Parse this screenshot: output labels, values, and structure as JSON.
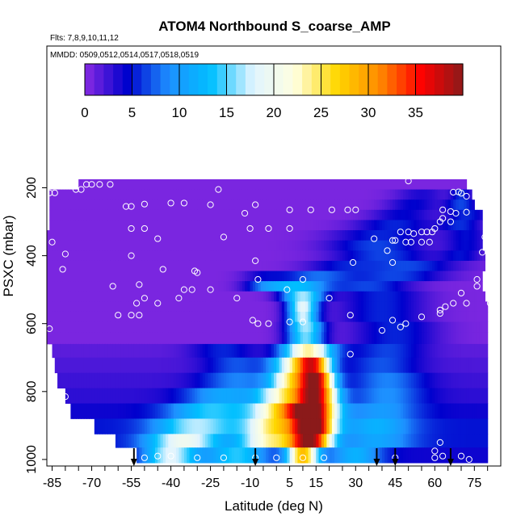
{
  "title": "ATOM4 Northbound S_coarse_AMP",
  "flights_note": "Flts: 7,8,9,10,11,12",
  "dates_note": "MMDD: 0509,0512,0514,0517,0518,0519",
  "chart_data": {
    "type": "heatmap",
    "xlabel": "Latitude (deg N)",
    "ylabel": "PSXC (mbar)",
    "xlim": [
      -87,
      85
    ],
    "ylim": [
      1010,
      100
    ],
    "y_reversed": true,
    "x_ticks": [
      -85,
      -70,
      -55,
      -40,
      -25,
      -10,
      5,
      15,
      30,
      45,
      60,
      75
    ],
    "y_ticks": [
      200,
      400,
      600,
      800,
      1000
    ],
    "colorbar": {
      "range": [
        0,
        40
      ],
      "ticks": [
        0,
        5,
        10,
        15,
        20,
        25,
        30,
        35
      ],
      "placement": "top",
      "palette": [
        "#8a2be2",
        "#0000cd",
        "#1e90ff",
        "#00bfff",
        "#e0f4ff",
        "#ffffe0",
        "#ffd700",
        "#ff8c00",
        "#ff0000",
        "#8b1a1a"
      ]
    },
    "layers": [
      {
        "p_top": 175,
        "p_bot": 205,
        "lat_min": -75,
        "lat_max": 72,
        "peaks": [],
        "base": 0.5
      },
      {
        "p_top": 205,
        "p_bot": 235,
        "lat_min": -86,
        "lat_max": 74,
        "peaks": [
          {
            "lat": 55,
            "w": 10,
            "v": 3
          },
          {
            "lat": 70,
            "w": 4,
            "v": 5
          }
        ],
        "base": 0.5
      },
      {
        "p_top": 235,
        "p_bot": 265,
        "lat_min": -86,
        "lat_max": 75,
        "peaks": [
          {
            "lat": 52,
            "w": 10,
            "v": 4
          },
          {
            "lat": 70,
            "w": 6,
            "v": 6
          }
        ],
        "base": 0.5
      },
      {
        "p_top": 265,
        "p_bot": 295,
        "lat_min": -86,
        "lat_max": 78,
        "peaks": [
          {
            "lat": 48,
            "w": 12,
            "v": 4
          },
          {
            "lat": 72,
            "w": 8,
            "v": 5
          }
        ],
        "base": 0.5
      },
      {
        "p_top": 295,
        "p_bot": 325,
        "lat_min": -86,
        "lat_max": 78,
        "peaks": [
          {
            "lat": 45,
            "w": 15,
            "v": 5
          },
          {
            "lat": 70,
            "w": 8,
            "v": 5
          }
        ],
        "base": 0.5
      },
      {
        "p_top": 325,
        "p_bot": 355,
        "lat_min": -87,
        "lat_max": 78,
        "peaks": [
          {
            "lat": 40,
            "w": 18,
            "v": 5
          },
          {
            "lat": 72,
            "w": 8,
            "v": 4
          }
        ],
        "base": 0.5
      },
      {
        "p_top": 355,
        "p_bot": 385,
        "lat_min": -87,
        "lat_max": 78,
        "peaks": [
          {
            "lat": 38,
            "w": 18,
            "v": 6
          },
          {
            "lat": 72,
            "w": 8,
            "v": 4
          }
        ],
        "base": 0.5
      },
      {
        "p_top": 385,
        "p_bot": 415,
        "lat_min": -87,
        "lat_max": 79,
        "peaks": [
          {
            "lat": 40,
            "w": 18,
            "v": 6
          },
          {
            "lat": 70,
            "w": 8,
            "v": 4
          }
        ],
        "base": 0.5
      },
      {
        "p_top": 415,
        "p_bot": 445,
        "lat_min": -87,
        "lat_max": 79,
        "peaks": [
          {
            "lat": 25,
            "w": 14,
            "v": 4
          },
          {
            "lat": 50,
            "w": 18,
            "v": 6
          }
        ],
        "base": 0.5
      },
      {
        "p_top": 445,
        "p_bot": 475,
        "lat_min": -87,
        "lat_max": 78,
        "peaks": [
          {
            "lat": 15,
            "w": 14,
            "v": 7
          },
          {
            "lat": 45,
            "w": 18,
            "v": 6
          },
          {
            "lat": -5,
            "w": 8,
            "v": 3
          }
        ],
        "base": 0.5
      },
      {
        "p_top": 475,
        "p_bot": 505,
        "lat_min": -87,
        "lat_max": 78,
        "peaks": [
          {
            "lat": 8,
            "w": 12,
            "v": 12
          },
          {
            "lat": 35,
            "w": 16,
            "v": 6
          },
          {
            "lat": -5,
            "w": 8,
            "v": 5
          }
        ],
        "base": 0.5
      },
      {
        "p_top": 505,
        "p_bot": 535,
        "lat_min": -87,
        "lat_max": 79,
        "peaks": [
          {
            "lat": 10,
            "w": 8,
            "v": 16
          },
          {
            "lat": 40,
            "w": 16,
            "v": 5
          }
        ],
        "base": 0.5
      },
      {
        "p_top": 535,
        "p_bot": 565,
        "lat_min": -87,
        "lat_max": 80,
        "peaks": [
          {
            "lat": 10,
            "w": 6,
            "v": 18
          },
          {
            "lat": 40,
            "w": 16,
            "v": 5
          }
        ],
        "base": 0.5
      },
      {
        "p_top": 565,
        "p_bot": 595,
        "lat_min": -87,
        "lat_max": 80,
        "peaks": [
          {
            "lat": 10,
            "w": 6,
            "v": 17
          },
          {
            "lat": 40,
            "w": 16,
            "v": 5
          }
        ],
        "base": 0.5
      },
      {
        "p_top": 595,
        "p_bot": 625,
        "lat_min": -87,
        "lat_max": 80,
        "peaks": [
          {
            "lat": 11,
            "w": 7,
            "v": 16
          },
          {
            "lat": 45,
            "w": 16,
            "v": 5
          }
        ],
        "base": 0.5
      },
      {
        "p_top": 625,
        "p_bot": 660,
        "lat_min": -87,
        "lat_max": 80,
        "peaks": [
          {
            "lat": 11,
            "w": 7,
            "v": 15
          },
          {
            "lat": 45,
            "w": 16,
            "v": 5
          }
        ],
        "base": 0.5
      },
      {
        "p_top": 660,
        "p_bot": 700,
        "lat_min": -85,
        "lat_max": 80,
        "peaks": [
          {
            "lat": 12,
            "w": 10,
            "v": 22
          },
          {
            "lat": -20,
            "w": 12,
            "v": 4
          },
          {
            "lat": 42,
            "w": 14,
            "v": 5
          }
        ],
        "base": 1.5
      },
      {
        "p_top": 700,
        "p_bot": 745,
        "lat_min": -84,
        "lat_max": 80,
        "peaks": [
          {
            "lat": 14,
            "w": 7,
            "v": 31
          },
          {
            "lat": 5,
            "w": 8,
            "v": 14
          },
          {
            "lat": -15,
            "w": 12,
            "v": 5
          },
          {
            "lat": 40,
            "w": 14,
            "v": 5
          }
        ],
        "base": 2
      },
      {
        "p_top": 745,
        "p_bot": 790,
        "lat_min": -83,
        "lat_max": 80,
        "peaks": [
          {
            "lat": 15,
            "w": 7,
            "v": 34
          },
          {
            "lat": 5,
            "w": 8,
            "v": 18
          },
          {
            "lat": -15,
            "w": 14,
            "v": 6
          },
          {
            "lat": 42,
            "w": 14,
            "v": 6
          }
        ],
        "base": 2.5
      },
      {
        "p_top": 790,
        "p_bot": 835,
        "lat_min": -80,
        "lat_max": 80,
        "peaks": [
          {
            "lat": 15,
            "w": 8,
            "v": 33
          },
          {
            "lat": 3,
            "w": 10,
            "v": 18
          },
          {
            "lat": -20,
            "w": 15,
            "v": 8
          },
          {
            "lat": 42,
            "w": 14,
            "v": 6
          }
        ],
        "base": 3
      },
      {
        "p_top": 835,
        "p_bot": 880,
        "lat_min": -78,
        "lat_max": 80,
        "peaks": [
          {
            "lat": 14,
            "w": 9,
            "v": 33
          },
          {
            "lat": 2,
            "w": 12,
            "v": 20
          },
          {
            "lat": -25,
            "w": 16,
            "v": 10
          },
          {
            "lat": 40,
            "w": 14,
            "v": 6
          }
        ],
        "base": 4
      },
      {
        "p_top": 880,
        "p_bot": 925,
        "lat_min": -69,
        "lat_max": 80,
        "peaks": [
          {
            "lat": 14,
            "w": 8,
            "v": 35
          },
          {
            "lat": 0,
            "w": 12,
            "v": 20
          },
          {
            "lat": -30,
            "w": 16,
            "v": 12
          },
          {
            "lat": 38,
            "w": 14,
            "v": 7
          }
        ],
        "base": 5
      },
      {
        "p_top": 925,
        "p_bot": 965,
        "lat_min": -61,
        "lat_max": 80,
        "peaks": [
          {
            "lat": 13,
            "w": 8,
            "v": 32
          },
          {
            "lat": -2,
            "w": 12,
            "v": 18
          },
          {
            "lat": -35,
            "w": 14,
            "v": 15
          },
          {
            "lat": 38,
            "w": 14,
            "v": 6
          }
        ],
        "base": 5
      },
      {
        "p_top": 965,
        "p_bot": 1010,
        "lat_min": -53,
        "lat_max": 80,
        "peaks": [
          {
            "lat": 10,
            "w": 6,
            "v": 24
          },
          {
            "lat": -40,
            "w": 10,
            "v": 14
          },
          {
            "lat": -15,
            "w": 12,
            "v": 10
          },
          {
            "lat": 30,
            "w": 10,
            "v": 8
          }
        ],
        "base": 4
      }
    ],
    "sample_points": [
      [
        -72,
        190
      ],
      [
        -70,
        190
      ],
      [
        -67,
        190
      ],
      [
        -63,
        190
      ],
      [
        -76,
        205
      ],
      [
        -74,
        205
      ],
      [
        -86,
        215
      ],
      [
        -84,
        215
      ],
      [
        -22,
        205
      ],
      [
        50,
        180
      ],
      [
        -57,
        255
      ],
      [
        -55,
        255
      ],
      [
        -50,
        248
      ],
      [
        -40,
        245
      ],
      [
        -35,
        245
      ],
      [
        -25,
        250
      ],
      [
        -8,
        250
      ],
      [
        -12,
        275
      ],
      [
        5,
        265
      ],
      [
        13,
        265
      ],
      [
        21,
        265
      ],
      [
        27,
        265
      ],
      [
        30,
        265
      ],
      [
        -55,
        320
      ],
      [
        -50,
        320
      ],
      [
        -10,
        320
      ],
      [
        -3,
        320
      ],
      [
        5,
        320
      ],
      [
        63,
        265
      ],
      [
        66,
        270
      ],
      [
        68,
        275
      ],
      [
        72,
        272
      ],
      [
        67,
        213
      ],
      [
        69,
        212
      ],
      [
        70,
        216
      ],
      [
        72,
        225
      ],
      [
        -80,
        395
      ],
      [
        -55,
        400
      ],
      [
        -45,
        350
      ],
      [
        -20,
        345
      ],
      [
        -8,
        415
      ],
      [
        29,
        420
      ],
      [
        37,
        350
      ],
      [
        42,
        385
      ],
      [
        44,
        355
      ],
      [
        45,
        355
      ],
      [
        47,
        330
      ],
      [
        50,
        330
      ],
      [
        52,
        335
      ],
      [
        55,
        330
      ],
      [
        57,
        330
      ],
      [
        59,
        330
      ],
      [
        60,
        320
      ],
      [
        62,
        300
      ],
      [
        63,
        290
      ],
      [
        66,
        300
      ],
      [
        49,
        360
      ],
      [
        51,
        360
      ],
      [
        55,
        360
      ],
      [
        58,
        360
      ],
      [
        -85,
        360
      ],
      [
        -81,
        440
      ],
      [
        -62,
        490
      ],
      [
        -52,
        485
      ],
      [
        -43,
        440
      ],
      [
        -37,
        525
      ],
      [
        -35,
        500
      ],
      [
        -30,
        450
      ],
      [
        -31,
        445
      ],
      [
        -53,
        540
      ],
      [
        -50,
        525
      ],
      [
        -45,
        540
      ],
      [
        -32,
        500
      ],
      [
        -25,
        500
      ],
      [
        -15,
        525
      ],
      [
        -7,
        470
      ],
      [
        4,
        500
      ],
      [
        10,
        470
      ],
      [
        20,
        525
      ],
      [
        44,
        420
      ],
      [
        62,
        560
      ],
      [
        62,
        570
      ],
      [
        64,
        550
      ],
      [
        67,
        540
      ],
      [
        70,
        510
      ],
      [
        72,
        540
      ],
      [
        76,
        470
      ],
      [
        76,
        490
      ],
      [
        79,
        345
      ],
      [
        78,
        390
      ],
      [
        81,
        540
      ],
      [
        -55,
        575
      ],
      [
        -52,
        575
      ],
      [
        -60,
        575
      ],
      [
        -86,
        615
      ],
      [
        -9,
        590
      ],
      [
        -7,
        600
      ],
      [
        -3,
        600
      ],
      [
        5,
        595
      ],
      [
        10,
        595
      ],
      [
        28,
        575
      ],
      [
        40,
        620
      ],
      [
        44,
        590
      ],
      [
        47,
        610
      ],
      [
        49,
        600
      ],
      [
        55,
        580
      ],
      [
        28,
        690
      ],
      [
        -80,
        815
      ],
      [
        -55,
        995
      ],
      [
        -50,
        995
      ],
      [
        -45,
        990
      ],
      [
        -40,
        990
      ],
      [
        -30,
        995
      ],
      [
        -20,
        995
      ],
      [
        -8,
        995
      ],
      [
        0,
        995
      ],
      [
        10,
        995
      ],
      [
        18,
        995
      ],
      [
        45,
        995
      ],
      [
        60,
        995
      ],
      [
        70,
        990
      ],
      [
        62,
        950
      ],
      [
        63,
        990
      ],
      [
        60,
        975
      ],
      [
        73,
        1000
      ]
    ],
    "arrows": [
      -54,
      -8,
      38,
      45,
      66
    ]
  }
}
